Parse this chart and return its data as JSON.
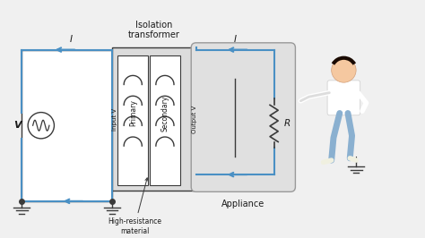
{
  "bg_color": "#f0f0f0",
  "wire_color": "#4a90c4",
  "line_color": "#3a3a3a",
  "text_color": "#1a1a1a",
  "box_fill": "#e8e8e8",
  "trans_fill": "#dcdcdc",
  "appliance_fill": "#e0e0e0",
  "labels": {
    "title": "Isolation\ntransformer",
    "primary": "Primary",
    "secondary": "Secondary",
    "input_v": "Input V",
    "output_v": "Output V",
    "high_res": "High-resistance\nmaterial",
    "appliance": "Appliance",
    "V_source": "V",
    "I_left": "I",
    "I_right": "I",
    "R_label": "R"
  },
  "figsize": [
    4.74,
    2.66
  ],
  "dpi": 100,
  "xlim": [
    0,
    10
  ],
  "ylim": [
    0,
    5.6
  ]
}
